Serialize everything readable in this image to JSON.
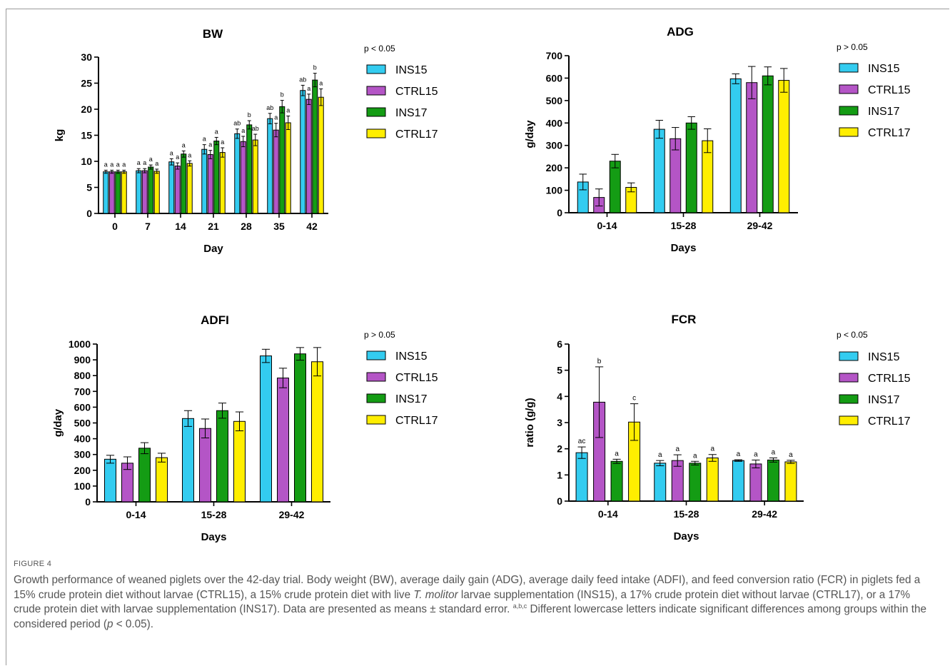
{
  "colors": {
    "INS15": "#33ccf0",
    "CTRL15": "#b455c6",
    "INS17": "#149c14",
    "CTRL17": "#ffee00"
  },
  "caption": {
    "figure_label": "FIGURE 4",
    "part1": "Growth performance of weaned piglets over the 42-day trial. Body weight (BW), average daily gain (ADG), average daily feed intake (ADFI), and feed conversion ratio (FCR) in piglets fed a 15% crude protein diet without larvae (CTRL15), a 15% crude protein diet with live ",
    "species": "T. molitor",
    "part2": " larvae supplementation (INS15), a 17% crude protein diet without larvae (CTRL17), or a 17% crude protein diet with larvae supplementation (INS17). Data are presented as means ± standard error. ",
    "superscript": "a,b,c",
    "part3": " Different lowercase letters indicate significant differences among groups within the considered period (",
    "p_symbol": "p",
    "part4": " < 0.05)."
  },
  "chart_data": [
    {
      "type": "bar",
      "title": "BW",
      "xlabel": "Day",
      "ylabel": "kg",
      "ylim": [
        0,
        30
      ],
      "yticks": [
        0,
        5,
        10,
        15,
        20,
        25,
        30
      ],
      "pvalue": "p < 0.05",
      "legend_position": "right",
      "grid": false,
      "categories": [
        "0",
        "7",
        "14",
        "21",
        "28",
        "35",
        "42"
      ],
      "series": [
        {
          "name": "INS15",
          "values": [
            8.0,
            8.2,
            9.9,
            12.3,
            15.3,
            18.2,
            23.6
          ],
          "errors": [
            0.3,
            0.4,
            0.6,
            0.9,
            0.9,
            1.0,
            1.0
          ],
          "letters": [
            "a",
            "a",
            "a",
            "a",
            "ab",
            "ab",
            "ab"
          ]
        },
        {
          "name": "CTRL15",
          "values": [
            8.0,
            8.2,
            9.1,
            11.3,
            13.8,
            16.0,
            21.9
          ],
          "errors": [
            0.3,
            0.4,
            0.6,
            0.8,
            1.0,
            1.3,
            1.0
          ],
          "letters": [
            "a",
            "a",
            "a",
            "a",
            "a",
            "a",
            "a"
          ]
        },
        {
          "name": "INS17",
          "values": [
            8.0,
            8.9,
            11.4,
            13.9,
            17.0,
            20.5,
            25.6
          ],
          "errors": [
            0.3,
            0.4,
            0.6,
            0.7,
            0.8,
            1.2,
            1.3
          ],
          "letters": [
            "a",
            "a",
            "a",
            "a",
            "b",
            "b",
            "b"
          ]
        },
        {
          "name": "CTRL17",
          "values": [
            8.0,
            8.1,
            9.6,
            11.7,
            14.1,
            17.4,
            22.3
          ],
          "errors": [
            0.3,
            0.4,
            0.5,
            0.9,
            1.1,
            1.3,
            1.6
          ],
          "letters": [
            "a",
            "a",
            "a",
            "a",
            "ab",
            "a",
            "a"
          ]
        }
      ]
    },
    {
      "type": "bar",
      "title": "ADG",
      "xlabel": "Days",
      "ylabel": "g/day",
      "ylim": [
        0,
        700
      ],
      "yticks": [
        0,
        100,
        200,
        300,
        400,
        500,
        600,
        700
      ],
      "pvalue": "p > 0.05",
      "legend_position": "right",
      "grid": false,
      "categories": [
        "0-14",
        "15-28",
        "29-42"
      ],
      "series": [
        {
          "name": "INS15",
          "values": [
            137,
            372,
            597
          ],
          "errors": [
            35,
            40,
            22
          ],
          "letters": []
        },
        {
          "name": "CTRL15",
          "values": [
            68,
            330,
            580
          ],
          "errors": [
            38,
            50,
            72
          ],
          "letters": []
        },
        {
          "name": "INS17",
          "values": [
            230,
            400,
            610
          ],
          "errors": [
            30,
            28,
            40
          ],
          "letters": []
        },
        {
          "name": "CTRL17",
          "values": [
            113,
            321,
            590
          ],
          "errors": [
            20,
            53,
            53
          ],
          "letters": []
        }
      ]
    },
    {
      "type": "bar",
      "title": "ADFI",
      "xlabel": "Days",
      "ylabel": "g/day",
      "ylim": [
        0,
        1000
      ],
      "yticks": [
        0,
        100,
        200,
        300,
        400,
        500,
        600,
        700,
        800,
        900,
        1000
      ],
      "pvalue": "p > 0.05",
      "legend_position": "right",
      "grid": false,
      "categories": [
        "0-14",
        "15-28",
        "29-42"
      ],
      "series": [
        {
          "name": "INS15",
          "values": [
            270,
            528,
            925
          ],
          "errors": [
            25,
            50,
            42
          ],
          "letters": []
        },
        {
          "name": "CTRL15",
          "values": [
            245,
            465,
            785
          ],
          "errors": [
            40,
            60,
            62
          ],
          "letters": []
        },
        {
          "name": "INS17",
          "values": [
            340,
            578,
            938
          ],
          "errors": [
            35,
            48,
            40
          ],
          "letters": []
        },
        {
          "name": "CTRL17",
          "values": [
            280,
            510,
            888
          ],
          "errors": [
            28,
            60,
            90
          ],
          "letters": []
        }
      ]
    },
    {
      "type": "bar",
      "title": "FCR",
      "xlabel": "Days",
      "ylabel": "ratio (g/g)",
      "ylim": [
        0,
        6
      ],
      "yticks": [
        0,
        1,
        2,
        3,
        4,
        5,
        6
      ],
      "pvalue": "p < 0.05",
      "legend_position": "right",
      "grid": false,
      "categories": [
        "0-14",
        "15-28",
        "29-42"
      ],
      "series": [
        {
          "name": "INS15",
          "values": [
            1.85,
            1.45,
            1.55
          ],
          "errors": [
            0.22,
            0.1,
            0.03
          ],
          "letters": [
            "ac",
            "a",
            "a"
          ]
        },
        {
          "name": "CTRL15",
          "values": [
            3.78,
            1.55,
            1.42
          ],
          "errors": [
            1.35,
            0.22,
            0.15
          ],
          "letters": [
            "b",
            "a",
            "a"
          ]
        },
        {
          "name": "INS17",
          "values": [
            1.52,
            1.45,
            1.57
          ],
          "errors": [
            0.08,
            0.07,
            0.08
          ],
          "letters": [
            "a",
            "a",
            "a"
          ]
        },
        {
          "name": "CTRL17",
          "values": [
            3.02,
            1.65,
            1.5
          ],
          "errors": [
            0.7,
            0.13,
            0.06
          ],
          "letters": [
            "c",
            "a",
            "a"
          ]
        }
      ]
    }
  ]
}
